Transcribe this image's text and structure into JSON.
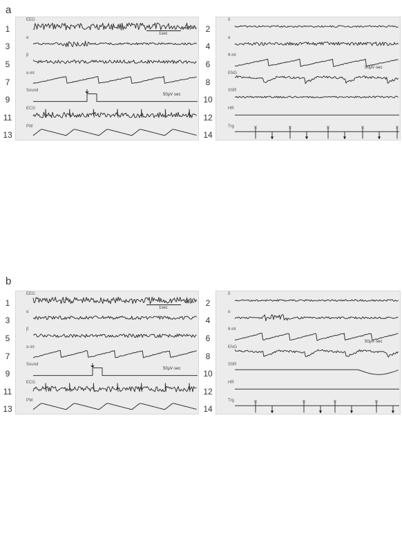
{
  "panels": [
    {
      "letter": "a",
      "rows": [
        {
          "num": "1",
          "label": "EEG",
          "type": "eeg"
        },
        {
          "num": "2",
          "label": "δ",
          "type": "flat"
        },
        {
          "num": "3",
          "label": "α",
          "type": "burst"
        },
        {
          "num": "4",
          "label": "α",
          "type": "noisy"
        },
        {
          "num": "5",
          "label": "β",
          "type": "noisy"
        },
        {
          "num": "6",
          "label": "θ-int",
          "type": "ramp"
        },
        {
          "num": "7",
          "label": "α-int",
          "type": "ramp"
        },
        {
          "num": "8",
          "label": "ENG",
          "type": "eng"
        },
        {
          "num": "9",
          "label": "Sound",
          "type": "sound"
        },
        {
          "num": "10",
          "label": "SSR",
          "type": "flat"
        },
        {
          "num": "11",
          "label": "ECG",
          "type": "ecg"
        },
        {
          "num": "12",
          "label": "HR",
          "type": "line"
        },
        {
          "num": "13",
          "label": "PW",
          "type": "pw"
        },
        {
          "num": "14",
          "label": "Trg",
          "type": "trg"
        }
      ],
      "scales": {
        "eeg": "50μV",
        "time": "1sec",
        "int1": "50μV·sec",
        "int2": "50μV·sec"
      }
    },
    {
      "letter": "b",
      "rows": [
        {
          "num": "1",
          "label": "EEG",
          "type": "eeg"
        },
        {
          "num": "2",
          "label": "δ",
          "type": "flat"
        },
        {
          "num": "3",
          "label": "α",
          "type": "noisy"
        },
        {
          "num": "4",
          "label": "α",
          "type": "burst"
        },
        {
          "num": "5",
          "label": "β",
          "type": "noisy"
        },
        {
          "num": "6",
          "label": "θ-int",
          "type": "ramp"
        },
        {
          "num": "7",
          "label": "α-int",
          "type": "ramp"
        },
        {
          "num": "8",
          "label": "ENG",
          "type": "eng"
        },
        {
          "num": "9",
          "label": "Sound",
          "type": "sound"
        },
        {
          "num": "10",
          "label": "SSR",
          "type": "ssr"
        },
        {
          "num": "11",
          "label": "ECG",
          "type": "ecg"
        },
        {
          "num": "12",
          "label": "HR",
          "type": "line"
        },
        {
          "num": "13",
          "label": "PW",
          "type": "pw"
        },
        {
          "num": "14",
          "label": "Trg",
          "type": "trg"
        }
      ],
      "scales": {
        "eeg": "50μV",
        "time": "1sec",
        "int1": "50μV·sec",
        "int2": "50μV·sec"
      }
    }
  ]
}
